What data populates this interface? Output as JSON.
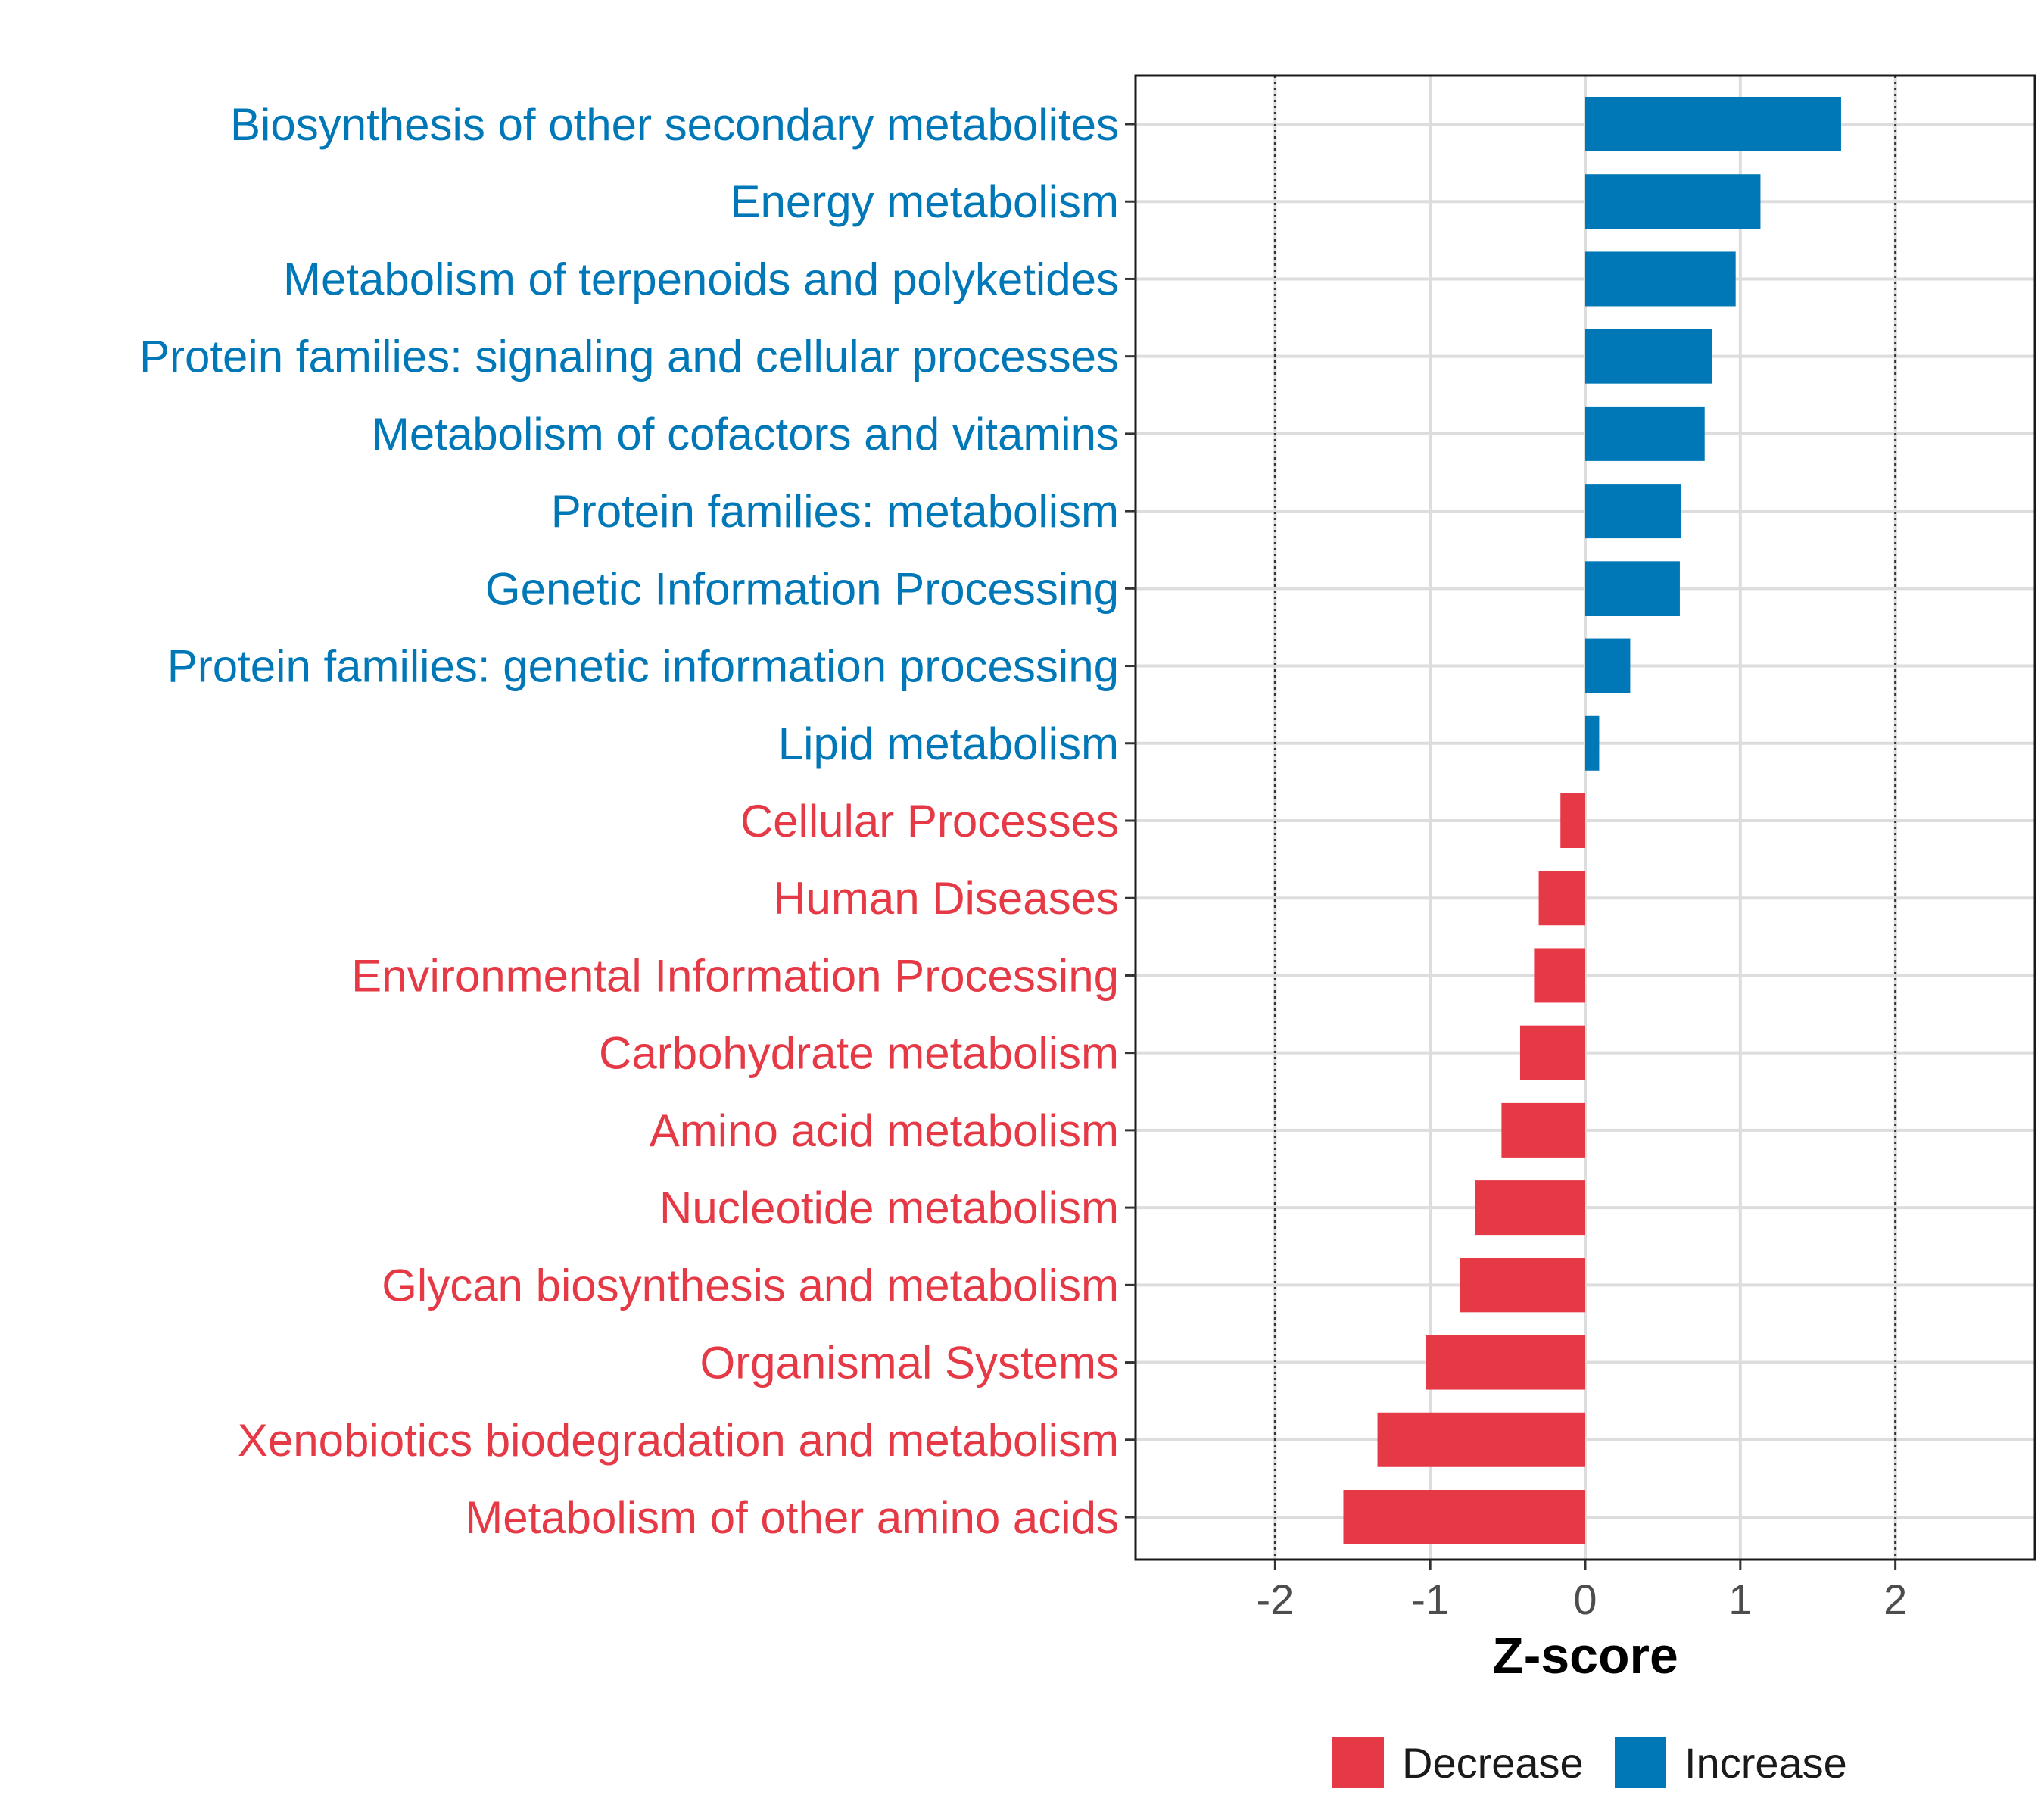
{
  "chart_data": {
    "type": "bar",
    "orientation": "horizontal",
    "xlabel": "Z-score",
    "ylabel": "",
    "xlim": [
      -2.9,
      2.9
    ],
    "x_ticks": [
      -2,
      -1,
      0,
      1,
      2
    ],
    "reference_lines": [
      -2,
      2
    ],
    "grid": true,
    "colors": {
      "Decrease": "#e63946",
      "Increase": "#0077b6"
    },
    "legend": {
      "position": "bottom",
      "entries": [
        {
          "name": "Decrease",
          "color": "#e63946"
        },
        {
          "name": "Increase",
          "color": "#0077b6"
        }
      ]
    },
    "categories": [
      "Biosynthesis of other secondary metabolites",
      "Energy metabolism",
      "Metabolism of terpenoids and polyketides",
      "Protein families: signaling and cellular processes",
      "Metabolism of cofactors and vitamins",
      "Protein families: metabolism",
      "Genetic Information Processing",
      "Protein families: genetic information processing",
      "Lipid metabolism",
      "Cellular Processes",
      "Human Diseases",
      "Environmental Information Processing",
      "Carbohydrate metabolism",
      "Amino acid metabolism",
      "Nucleotide metabolism",
      "Glycan biosynthesis and metabolism",
      "Organismal Systems",
      "Xenobiotics biodegradation and metabolism",
      "Metabolism of other amino acids"
    ],
    "values": [
      1.65,
      1.13,
      0.97,
      0.82,
      0.77,
      0.62,
      0.61,
      0.29,
      0.09,
      -0.16,
      -0.3,
      -0.33,
      -0.42,
      -0.54,
      -0.71,
      -0.81,
      -1.03,
      -1.34,
      -1.56
    ],
    "groups": [
      "Increase",
      "Increase",
      "Increase",
      "Increase",
      "Increase",
      "Increase",
      "Increase",
      "Increase",
      "Increase",
      "Decrease",
      "Decrease",
      "Decrease",
      "Decrease",
      "Decrease",
      "Decrease",
      "Decrease",
      "Decrease",
      "Decrease",
      "Decrease"
    ]
  }
}
